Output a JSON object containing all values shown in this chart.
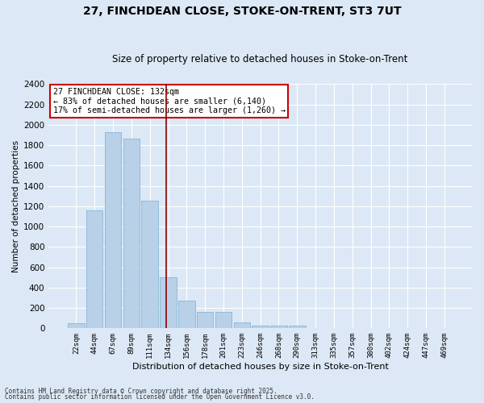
{
  "title_line1": "27, FINCHDEAN CLOSE, STOKE-ON-TRENT, ST3 7UT",
  "title_line2": "Size of property relative to detached houses in Stoke-on-Trent",
  "xlabel": "Distribution of detached houses by size in Stoke-on-Trent",
  "ylabel": "Number of detached properties",
  "categories": [
    "22sqm",
    "44sqm",
    "67sqm",
    "89sqm",
    "111sqm",
    "134sqm",
    "156sqm",
    "178sqm",
    "201sqm",
    "223sqm",
    "246sqm",
    "268sqm",
    "290sqm",
    "313sqm",
    "335sqm",
    "357sqm",
    "380sqm",
    "402sqm",
    "424sqm",
    "447sqm",
    "469sqm"
  ],
  "values": [
    50,
    1160,
    1930,
    1860,
    1250,
    500,
    270,
    160,
    160,
    55,
    25,
    25,
    25,
    5,
    0,
    0,
    0,
    0,
    0,
    0,
    0
  ],
  "bar_color": "#b8d0e8",
  "bar_edge_color": "#7aafd4",
  "background_color": "#dce8f5",
  "grid_color": "#ffffff",
  "vline_x_idx": 4.87,
  "vline_color": "#8b0000",
  "annotation_text": "27 FINCHDEAN CLOSE: 132sqm\n← 83% of detached houses are smaller (6,140)\n17% of semi-detached houses are larger (1,260) →",
  "annotation_box_color": "#ffffff",
  "annotation_box_edge_color": "#cc0000",
  "ylim": [
    0,
    2400
  ],
  "yticks": [
    0,
    200,
    400,
    600,
    800,
    1000,
    1200,
    1400,
    1600,
    1800,
    2000,
    2200,
    2400
  ],
  "footer_line1": "Contains HM Land Registry data © Crown copyright and database right 2025.",
  "footer_line2": "Contains public sector information licensed under the Open Government Licence v3.0."
}
